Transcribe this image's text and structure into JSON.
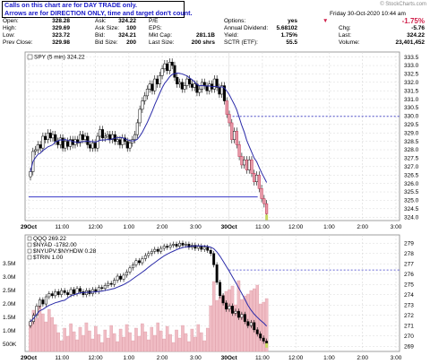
{
  "note": {
    "line1": "Calls on this chart are for DAY TRADE only.",
    "line2": "Arrows are for DIRECTION ONLY, time and target don't count."
  },
  "watermark": "© StockCharts.com",
  "header": {
    "date": "Friday  30-Oct-2020  10:44 am",
    "change_pct": "-1.75%",
    "change_color": "#d0204a",
    "chg_label": "Chg:",
    "chg_value": "-5.76",
    "last_label": "Last:",
    "last_value": "324.22",
    "volume_label": "Volume:",
    "volume_value": "23,401,452"
  },
  "quote": [
    [
      {
        "l": "Open:",
        "v": "328.28"
      },
      {
        "l": "Ask:",
        "v": "324.22"
      },
      {
        "l": "P/E",
        "v": ""
      },
      {
        "l": "Options:",
        "v": "yes"
      }
    ],
    [
      {
        "l": "High:",
        "v": "329.69"
      },
      {
        "l": "Ask Size:",
        "v": "100"
      },
      {
        "l": "EPS:",
        "v": ""
      },
      {
        "l": "Annual Dividend:",
        "v": "5.68102"
      }
    ],
    [
      {
        "l": "Low:",
        "v": "323.72"
      },
      {
        "l": "Bid:",
        "v": "324.21"
      },
      {
        "l": "Mkt Cap:",
        "v": "281.1B"
      },
      {
        "l": "Yield:",
        "v": "1.75%"
      }
    ],
    [
      {
        "l": "Prev Close:",
        "v": "329.98"
      },
      {
        "l": "Bid Size:",
        "v": "200"
      },
      {
        "l": "Last Size:",
        "v": "200 shrs"
      },
      {
        "l": "SCTR (ETF):",
        "v": "55.5"
      }
    ]
  ],
  "chart_data": [
    {
      "type": "candlestick",
      "legend": "SPY (5 min) 324.22",
      "x_ticks": [
        "29Oct",
        "11:00",
        "12:00",
        "1:00",
        "2:00",
        "3:00",
        "30Oct",
        "11:00",
        "12:00",
        "1:00",
        "2:00",
        "3:00"
      ],
      "y_ticks": [
        324.0,
        324.5,
        325.0,
        325.5,
        326.0,
        326.5,
        327.0,
        327.5,
        328.0,
        328.5,
        329.0,
        329.5,
        330.0,
        330.5,
        331.0,
        331.5,
        332.0,
        332.5,
        333.0,
        333.5
      ],
      "ylim": [
        323.8,
        333.8
      ],
      "prev_close": 329.98,
      "support": 325.2,
      "closes": [
        326.7,
        327.9,
        328.0,
        328.3,
        328.1,
        328.8,
        328.6,
        329.0,
        328.7,
        328.9,
        328.5,
        328.3,
        328.7,
        328.1,
        328.5,
        328.2,
        328.6,
        328.3,
        328.6,
        328.4,
        328.9,
        328.6,
        328.8,
        328.3,
        328.1,
        328.4,
        328.1,
        328.8,
        329.2,
        328.7,
        328.8,
        328.9,
        328.6,
        328.9,
        328.5,
        328.6,
        328.3,
        328.7,
        328.5,
        328.1,
        328.4,
        328.6,
        328.9,
        329.6,
        330.4,
        330.9,
        331.2,
        331.6,
        331.9,
        331.5,
        332.2,
        331.9,
        332.4,
        332.8,
        333.1,
        332.7,
        333.2,
        333.0,
        332.3,
        331.9,
        332.0,
        331.6,
        331.8,
        332.2,
        331.9,
        331.7,
        331.9,
        331.4,
        331.6,
        332.0,
        331.8,
        331.5,
        331.9,
        331.6,
        332.2,
        331.7,
        331.3,
        331.8,
        330.9,
        330.1,
        329.6,
        328.6,
        329.1,
        328.3,
        327.6,
        327.1,
        327.4,
        326.8,
        327.4,
        326.6,
        326.1,
        326.5,
        325.7,
        325.1,
        324.8,
        324.2
      ]
    },
    {
      "type": "line_volume",
      "legends": [
        "QQQ 269.22",
        "$NYAD -1782.00",
        "$NYUPV:$NYHDW 0.28",
        "$TRIN 1.00"
      ],
      "right_ticks": [
        269,
        270,
        271,
        272,
        273,
        274,
        275,
        276,
        277,
        278,
        279
      ],
      "left_ticks": [
        "500K",
        "1.0M",
        "1.5M",
        "2.0M",
        "2.5M",
        "3.0M",
        "3.5M"
      ],
      "prev_close": 276.4,
      "closes": [
        271.4,
        272.0,
        272.9,
        273.5,
        273.1,
        273.8,
        274.1,
        273.9,
        274.3,
        274.0,
        274.4,
        274.2,
        274.0,
        274.5,
        274.1,
        274.6,
        274.3,
        274.0,
        274.4,
        274.1,
        274.5,
        274.3,
        274.7,
        274.6,
        274.9,
        275.1,
        275.0,
        275.4,
        275.8,
        275.5,
        275.9,
        276.2,
        276.6,
        276.9,
        277.3,
        277.1,
        277.5,
        277.8,
        278.0,
        278.2,
        278.4,
        278.2,
        278.5,
        278.7,
        278.6,
        278.8,
        278.9,
        278.7,
        279.0,
        278.8,
        278.9,
        278.6,
        278.8,
        278.5,
        278.7,
        278.4,
        278.6,
        278.3,
        278.0,
        276.9,
        275.2,
        273.9,
        273.2,
        272.6,
        272.9,
        272.2,
        272.4,
        271.8,
        272.1,
        271.4,
        271.0,
        271.3,
        270.6,
        270.2,
        269.8,
        269.5,
        269.2
      ]
    }
  ]
}
